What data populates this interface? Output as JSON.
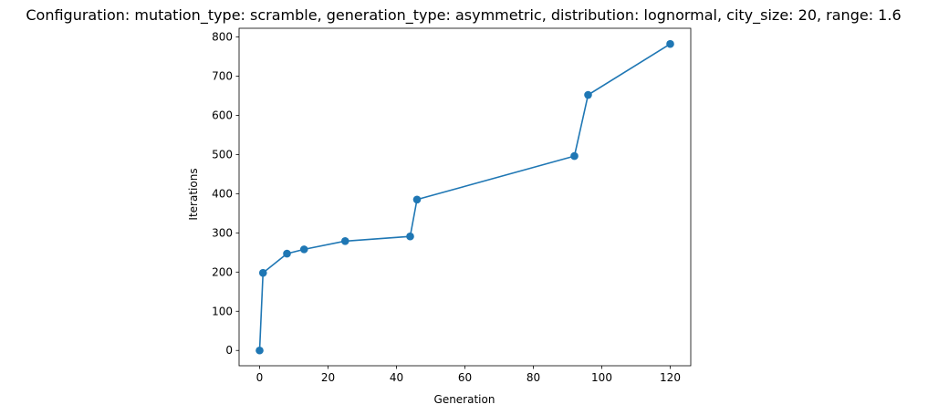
{
  "chart_data": {
    "type": "line",
    "title": "Configuration: mutation_type: scramble, generation_type: asymmetric, distribution: lognormal, city_size: 20, range: 1.6",
    "xlabel": "Generation",
    "ylabel": "Iterations",
    "xlim": [
      -6,
      126
    ],
    "ylim": [
      -39,
      822
    ],
    "xticks": [
      0,
      20,
      40,
      60,
      80,
      100,
      120
    ],
    "yticks": [
      0,
      100,
      200,
      300,
      400,
      500,
      600,
      700,
      800
    ],
    "grid": false,
    "legend": "none",
    "series": [
      {
        "color": "#1f77b4",
        "marker": "circle",
        "x": [
          0,
          1,
          8,
          13,
          25,
          44,
          46,
          92,
          96,
          120
        ],
        "y": [
          0,
          198,
          247,
          258,
          279,
          291,
          385,
          496,
          652,
          782
        ]
      }
    ]
  }
}
